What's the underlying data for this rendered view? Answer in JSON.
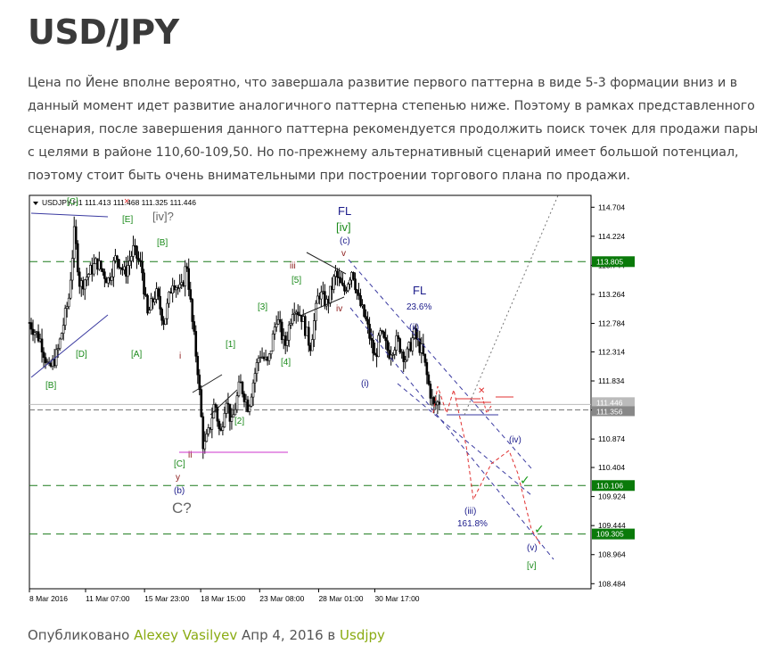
{
  "post": {
    "title": "USD/JPY",
    "description": "Цена по Йене вполне вероятно, что завершала развитие первого паттерна в виде 5-3 формации вниз и в данный момент идет развитие аналогичного паттерна степенью ниже. Поэтому в рамках представленного сценария, после завершения данного паттерна рекомендуется продолжить поиск точек для продажи пары с целями в районе 110,60-109,50. Но по-прежнему альтернативный сценарий имеет большой потенциал, поэтому стоит быть очень внимательными при построении торгового плана по продажи."
  },
  "footer": {
    "published_label": "Опубликовано",
    "author": "Alexey Vasilyev",
    "date": "Апр 4, 2016",
    "in_label": "в",
    "category": "Usdjpy"
  },
  "colors": {
    "title": "#3a3a3a",
    "link": "#8aab12",
    "candles": "#000000",
    "level_line": "#1a7a1a",
    "level_label_bg": "#0a7a0a",
    "wave_green": "#1a8a1a",
    "wave_navy": "#1a1a8a",
    "wave_red": "#8b1a1a",
    "forecast_red": "#e03030",
    "channel_blue": "#3a3aa0",
    "magenta": "#cc33cc"
  },
  "chart_data": {
    "type": "candlestick",
    "symbol_header": "USDJPY,H1  111.413 111.468 111.325 111.446",
    "timeframe": "H1",
    "ohlc": {
      "open": 111.413,
      "high": 111.468,
      "low": 111.325,
      "close": 111.446
    },
    "ylim": [
      108.4,
      114.9
    ],
    "y_ticks": [
      "114.704",
      "114.224",
      "113.744",
      "113.264",
      "112.784",
      "112.314",
      "111.834",
      "111.354",
      "110.874",
      "110.404",
      "109.924",
      "109.444",
      "108.964",
      "108.484"
    ],
    "x_ticks": [
      "8 Mar 2016",
      "11 Mar 07:00",
      "15 Mar 23:00",
      "18 Mar 15:00",
      "23 Mar 08:00",
      "28 Mar 01:00",
      "30 Mar 17:00"
    ],
    "price_levels": [
      {
        "value": 113.805,
        "label": "113.805"
      },
      {
        "value": 110.106,
        "label": "110.106"
      },
      {
        "value": 109.305,
        "label": "109.305"
      }
    ],
    "current_price_labels": [
      "111.446",
      "111.356"
    ],
    "price_path": [
      [
        0,
        112.8
      ],
      [
        0.02,
        112.5
      ],
      [
        0.035,
        112.0
      ],
      [
        0.05,
        112.3
      ],
      [
        0.07,
        113.2
      ],
      [
        0.08,
        114.3
      ],
      [
        0.09,
        113.4
      ],
      [
        0.105,
        113.6
      ],
      [
        0.12,
        113.8
      ],
      [
        0.14,
        113.5
      ],
      [
        0.155,
        113.9
      ],
      [
        0.17,
        113.6
      ],
      [
        0.185,
        114.0
      ],
      [
        0.2,
        113.7
      ],
      [
        0.21,
        112.9
      ],
      [
        0.225,
        113.3
      ],
      [
        0.24,
        112.8
      ],
      [
        0.255,
        113.5
      ],
      [
        0.27,
        113.3
      ],
      [
        0.28,
        113.8
      ],
      [
        0.29,
        112.8
      ],
      [
        0.3,
        112.0
      ],
      [
        0.31,
        110.7
      ],
      [
        0.32,
        111.0
      ],
      [
        0.33,
        111.5
      ],
      [
        0.34,
        110.9
      ],
      [
        0.35,
        111.6
      ],
      [
        0.36,
        111.1
      ],
      [
        0.375,
        111.8
      ],
      [
        0.39,
        111.4
      ],
      [
        0.4,
        111.9
      ],
      [
        0.41,
        112.3
      ],
      [
        0.425,
        112.1
      ],
      [
        0.44,
        112.9
      ],
      [
        0.455,
        112.4
      ],
      [
        0.47,
        113.1
      ],
      [
        0.485,
        112.9
      ],
      [
        0.5,
        112.4
      ],
      [
        0.515,
        113.3
      ],
      [
        0.53,
        113.1
      ],
      [
        0.545,
        113.6
      ],
      [
        0.56,
        113.3
      ],
      [
        0.575,
        113.7
      ],
      [
        0.585,
        113.2
      ],
      [
        0.6,
        112.8
      ],
      [
        0.615,
        112.2
      ],
      [
        0.625,
        112.6
      ],
      [
        0.64,
        112.3
      ],
      [
        0.655,
        112.5
      ],
      [
        0.67,
        112.2
      ],
      [
        0.685,
        112.6
      ],
      [
        0.7,
        112.3
      ],
      [
        0.71,
        111.8
      ],
      [
        0.72,
        111.4
      ],
      [
        0.73,
        111.5
      ]
    ],
    "wave_labels": [
      {
        "text": "[C]",
        "color": "green"
      },
      {
        "text": "[E]",
        "color": "green"
      },
      {
        "text": "[iv]?",
        "color": "gray"
      },
      {
        "text": "[B]",
        "color": "green"
      },
      {
        "text": "[D]",
        "color": "green"
      },
      {
        "text": "[A]",
        "color": "green"
      },
      {
        "text": "[B]",
        "color": "green"
      },
      {
        "text": "i",
        "color": "red"
      },
      {
        "text": "ii",
        "color": "red"
      },
      {
        "text": "[C]",
        "color": "green"
      },
      {
        "text": "y",
        "color": "red"
      },
      {
        "text": "(b)",
        "color": "navy"
      },
      {
        "text": "C?",
        "color": "gray"
      },
      {
        "text": "[1]",
        "color": "green"
      },
      {
        "text": "[2]",
        "color": "green"
      },
      {
        "text": "[3]",
        "color": "green"
      },
      {
        "text": "[4]",
        "color": "green"
      },
      {
        "text": "[5]",
        "color": "green"
      },
      {
        "text": "iii",
        "color": "red"
      },
      {
        "text": "iv",
        "color": "red"
      },
      {
        "text": "FL",
        "color": "navy"
      },
      {
        "text": "[iv]",
        "color": "green"
      },
      {
        "text": "(c)",
        "color": "navy"
      },
      {
        "text": "v",
        "color": "red"
      },
      {
        "text": "FL",
        "color": "navy"
      },
      {
        "text": "23.6%",
        "color": "navy"
      },
      {
        "text": "(ii)",
        "color": "navy"
      },
      {
        "text": "(i)",
        "color": "navy"
      },
      {
        "text": "(iv)",
        "color": "navy"
      },
      {
        "text": "(iii)",
        "color": "navy"
      },
      {
        "text": "161.8%",
        "color": "navy"
      },
      {
        "text": "(v)",
        "color": "navy"
      },
      {
        "text": "[v]",
        "color": "green"
      }
    ]
  }
}
